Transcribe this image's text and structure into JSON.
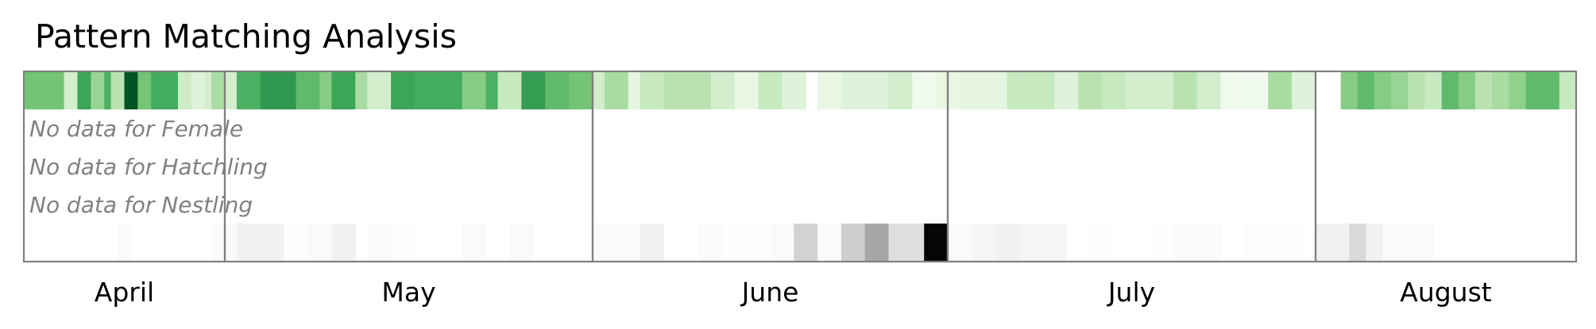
{
  "chart_data": {
    "type": "heatmap",
    "title": "Pattern Matching Analysis",
    "x_axis": "date (Apr 1 – Aug 31)",
    "months": [
      {
        "label": "April",
        "start": "04-01",
        "days": 30
      },
      {
        "label": "May",
        "start": "05-01",
        "days": 31
      },
      {
        "label": "June",
        "start": "06-01",
        "days": 30
      },
      {
        "label": "July",
        "start": "07-01",
        "days": 31
      },
      {
        "label": "August",
        "start": "08-01",
        "days": 31
      }
    ],
    "rows": [
      {
        "name": "",
        "colormap": "greens",
        "value_scale": "0 (lightest) to 1 (darkest)",
        "values": [
          [
            "04-01",
            0.5
          ],
          [
            "04-02",
            0.5
          ],
          [
            "04-03",
            0.5
          ],
          [
            "04-04",
            0.5
          ],
          [
            "04-05",
            0.5
          ],
          [
            "04-06",
            0.5
          ],
          [
            "04-07",
            0.2
          ],
          [
            "04-08",
            0.2
          ],
          [
            "04-09",
            0.65
          ],
          [
            "04-10",
            0.65
          ],
          [
            "04-11",
            0.4
          ],
          [
            "04-12",
            0.4
          ],
          [
            "04-13",
            0.6
          ],
          [
            "04-14",
            0.3
          ],
          [
            "04-15",
            0.3
          ],
          [
            "04-16",
            0.95
          ],
          [
            "04-17",
            0.95
          ],
          [
            "04-18",
            0.5
          ],
          [
            "04-19",
            0.5
          ],
          [
            "04-20",
            0.62
          ],
          [
            "04-21",
            0.62
          ],
          [
            "04-22",
            0.62
          ],
          [
            "04-23",
            0.62
          ],
          [
            "04-24",
            0.22
          ],
          [
            "04-25",
            0.22
          ],
          [
            "04-26",
            0.15
          ],
          [
            "04-27",
            0.15
          ],
          [
            "04-28",
            0.2
          ],
          [
            "04-29",
            0.35
          ],
          [
            "04-30",
            0.35
          ],
          [
            "05-01",
            0.2
          ],
          [
            "05-02",
            0.6
          ],
          [
            "05-03",
            0.6
          ],
          [
            "05-04",
            0.7
          ],
          [
            "05-05",
            0.7
          ],
          [
            "05-06",
            0.7
          ],
          [
            "05-07",
            0.55
          ],
          [
            "05-08",
            0.55
          ],
          [
            "05-09",
            0.45
          ],
          [
            "05-10",
            0.65
          ],
          [
            "05-11",
            0.65
          ],
          [
            "05-12",
            0.35
          ],
          [
            "05-13",
            0.2
          ],
          [
            "05-14",
            0.2
          ],
          [
            "05-15",
            0.65
          ],
          [
            "05-16",
            0.65
          ],
          [
            "05-17",
            0.62
          ],
          [
            "05-18",
            0.62
          ],
          [
            "05-19",
            0.62
          ],
          [
            "05-20",
            0.62
          ],
          [
            "05-21",
            0.45
          ],
          [
            "05-22",
            0.45
          ],
          [
            "05-23",
            0.6
          ],
          [
            "05-24",
            0.25
          ],
          [
            "05-25",
            0.25
          ],
          [
            "05-26",
            0.68
          ],
          [
            "05-27",
            0.68
          ],
          [
            "05-28",
            0.55
          ],
          [
            "05-29",
            0.55
          ],
          [
            "05-30",
            0.5
          ],
          [
            "05-31",
            0.5
          ],
          [
            "06-01",
            0.2
          ],
          [
            "06-02",
            0.35
          ],
          [
            "06-03",
            0.35
          ],
          [
            "06-04",
            0.12
          ],
          [
            "06-05",
            0.25
          ],
          [
            "06-06",
            0.25
          ],
          [
            "06-07",
            0.3
          ],
          [
            "06-08",
            0.3
          ],
          [
            "06-09",
            0.3
          ],
          [
            "06-10",
            0.3
          ],
          [
            "06-11",
            0.2
          ],
          [
            "06-12",
            0.2
          ],
          [
            "06-13",
            0.1
          ],
          [
            "06-14",
            0.1
          ],
          [
            "06-15",
            0.25
          ],
          [
            "06-16",
            0.25
          ],
          [
            "06-17",
            0.15
          ],
          [
            "06-18",
            0.15
          ],
          [
            "06-20",
            0.1
          ],
          [
            "06-21",
            0.1
          ],
          [
            "06-22",
            0.15
          ],
          [
            "06-23",
            0.15
          ],
          [
            "06-24",
            0.15
          ],
          [
            "06-25",
            0.15
          ],
          [
            "06-26",
            0.2
          ],
          [
            "06-27",
            0.2
          ],
          [
            "06-28",
            0.05
          ],
          [
            "06-29",
            0.05
          ],
          [
            "06-30",
            0.1
          ],
          [
            "07-01",
            0.1
          ],
          [
            "07-02",
            0.12
          ],
          [
            "07-03",
            0.12
          ],
          [
            "07-04",
            0.12
          ],
          [
            "07-05",
            0.12
          ],
          [
            "07-06",
            0.25
          ],
          [
            "07-07",
            0.25
          ],
          [
            "07-08",
            0.25
          ],
          [
            "07-09",
            0.25
          ],
          [
            "07-10",
            0.15
          ],
          [
            "07-11",
            0.15
          ],
          [
            "07-12",
            0.3
          ],
          [
            "07-13",
            0.3
          ],
          [
            "07-14",
            0.25
          ],
          [
            "07-15",
            0.25
          ],
          [
            "07-16",
            0.2
          ],
          [
            "07-17",
            0.2
          ],
          [
            "07-18",
            0.2
          ],
          [
            "07-19",
            0.2
          ],
          [
            "07-20",
            0.3
          ],
          [
            "07-21",
            0.3
          ],
          [
            "07-22",
            0.2
          ],
          [
            "07-23",
            0.2
          ],
          [
            "07-24",
            0.05
          ],
          [
            "07-25",
            0.05
          ],
          [
            "07-26",
            0.05
          ],
          [
            "07-27",
            0.05
          ],
          [
            "07-28",
            0.35
          ],
          [
            "07-29",
            0.35
          ],
          [
            "07-30",
            0.15
          ],
          [
            "07-31",
            0.15
          ],
          [
            "08-04",
            0.45
          ],
          [
            "08-05",
            0.45
          ],
          [
            "08-06",
            0.55
          ],
          [
            "08-07",
            0.55
          ],
          [
            "08-08",
            0.45
          ],
          [
            "08-09",
            0.45
          ],
          [
            "08-10",
            0.4
          ],
          [
            "08-11",
            0.4
          ],
          [
            "08-12",
            0.3
          ],
          [
            "08-13",
            0.3
          ],
          [
            "08-14",
            0.25
          ],
          [
            "08-15",
            0.25
          ],
          [
            "08-16",
            0.55
          ],
          [
            "08-17",
            0.55
          ],
          [
            "08-18",
            0.45
          ],
          [
            "08-19",
            0.45
          ],
          [
            "08-20",
            0.3
          ],
          [
            "08-21",
            0.3
          ],
          [
            "08-22",
            0.35
          ],
          [
            "08-23",
            0.35
          ],
          [
            "08-24",
            0.42
          ],
          [
            "08-25",
            0.42
          ],
          [
            "08-26",
            0.55
          ],
          [
            "08-27",
            0.55
          ],
          [
            "08-28",
            0.55
          ],
          [
            "08-29",
            0.55
          ],
          [
            "08-30",
            0.25
          ],
          [
            "08-31",
            0.25
          ]
        ]
      },
      {
        "name": "Female",
        "no_data_text": "No data for Female",
        "values": []
      },
      {
        "name": "Hatchling",
        "no_data_text": "No data for Hatchling",
        "values": []
      },
      {
        "name": "Nestling",
        "no_data_text": "No data for Nestling",
        "values": []
      },
      {
        "name": "",
        "colormap": "greys",
        "value_scale": "0 (white) to 1 (black)",
        "values": [
          [
            "04-15",
            0.04
          ],
          [
            "04-16",
            0.04
          ],
          [
            "04-29",
            0.04
          ],
          [
            "04-30",
            0.04
          ],
          [
            "05-01",
            0.04
          ],
          [
            "05-02",
            0.12
          ],
          [
            "05-03",
            0.12
          ],
          [
            "05-04",
            0.12
          ],
          [
            "05-05",
            0.12
          ],
          [
            "05-06",
            0.02
          ],
          [
            "05-07",
            0.02
          ],
          [
            "05-08",
            0.04
          ],
          [
            "05-09",
            0.04
          ],
          [
            "05-10",
            0.12
          ],
          [
            "05-11",
            0.12
          ],
          [
            "05-13",
            0.04
          ],
          [
            "05-14",
            0.04
          ],
          [
            "05-15",
            0.02
          ],
          [
            "05-16",
            0.02
          ],
          [
            "05-21",
            0.04
          ],
          [
            "05-22",
            0.04
          ],
          [
            "05-25",
            0.04
          ],
          [
            "05-26",
            0.04
          ],
          [
            "06-01",
            0.04
          ],
          [
            "06-02",
            0.04
          ],
          [
            "06-03",
            0.04
          ],
          [
            "06-04",
            0.04
          ],
          [
            "06-05",
            0.12
          ],
          [
            "06-06",
            0.12
          ],
          [
            "06-10",
            0.04
          ],
          [
            "06-11",
            0.04
          ],
          [
            "06-12",
            0.02
          ],
          [
            "06-13",
            0.02
          ],
          [
            "06-14",
            0.02
          ],
          [
            "06-15",
            0.02
          ],
          [
            "06-16",
            0.04
          ],
          [
            "06-17",
            0.04
          ],
          [
            "06-18",
            0.28
          ],
          [
            "06-19",
            0.28
          ],
          [
            "06-20",
            0.04
          ],
          [
            "06-21",
            0.04
          ],
          [
            "06-22",
            0.3
          ],
          [
            "06-23",
            0.3
          ],
          [
            "06-24",
            0.45
          ],
          [
            "06-25",
            0.45
          ],
          [
            "06-26",
            0.22
          ],
          [
            "06-27",
            0.22
          ],
          [
            "06-28",
            0.22
          ],
          [
            "06-29",
            0.98
          ],
          [
            "06-30",
            0.98
          ],
          [
            "07-01",
            0.04
          ],
          [
            "07-02",
            0.04
          ],
          [
            "07-03",
            0.08
          ],
          [
            "07-04",
            0.08
          ],
          [
            "07-05",
            0.12
          ],
          [
            "07-06",
            0.12
          ],
          [
            "07-07",
            0.08
          ],
          [
            "07-08",
            0.08
          ],
          [
            "07-09",
            0.08
          ],
          [
            "07-10",
            0.08
          ],
          [
            "07-13",
            0.02
          ],
          [
            "07-14",
            0.02
          ],
          [
            "07-18",
            0.02
          ],
          [
            "07-19",
            0.02
          ],
          [
            "07-20",
            0.04
          ],
          [
            "07-21",
            0.04
          ],
          [
            "07-22",
            0.04
          ],
          [
            "07-23",
            0.04
          ],
          [
            "07-26",
            0.02
          ],
          [
            "07-27",
            0.02
          ],
          [
            "07-28",
            0.02
          ],
          [
            "07-29",
            0.02
          ],
          [
            "07-30",
            0.02
          ],
          [
            "08-01",
            0.12
          ],
          [
            "08-02",
            0.12
          ],
          [
            "08-03",
            0.12
          ],
          [
            "08-04",
            0.12
          ],
          [
            "08-05",
            0.25
          ],
          [
            "08-06",
            0.25
          ],
          [
            "08-07",
            0.12
          ],
          [
            "08-08",
            0.12
          ],
          [
            "08-09",
            0.04
          ],
          [
            "08-10",
            0.04
          ],
          [
            "08-11",
            0.04
          ],
          [
            "08-12",
            0.04
          ],
          [
            "08-13",
            0.04
          ],
          [
            "08-14",
            0.04
          ]
        ]
      }
    ],
    "grid": false,
    "legend": "none"
  }
}
